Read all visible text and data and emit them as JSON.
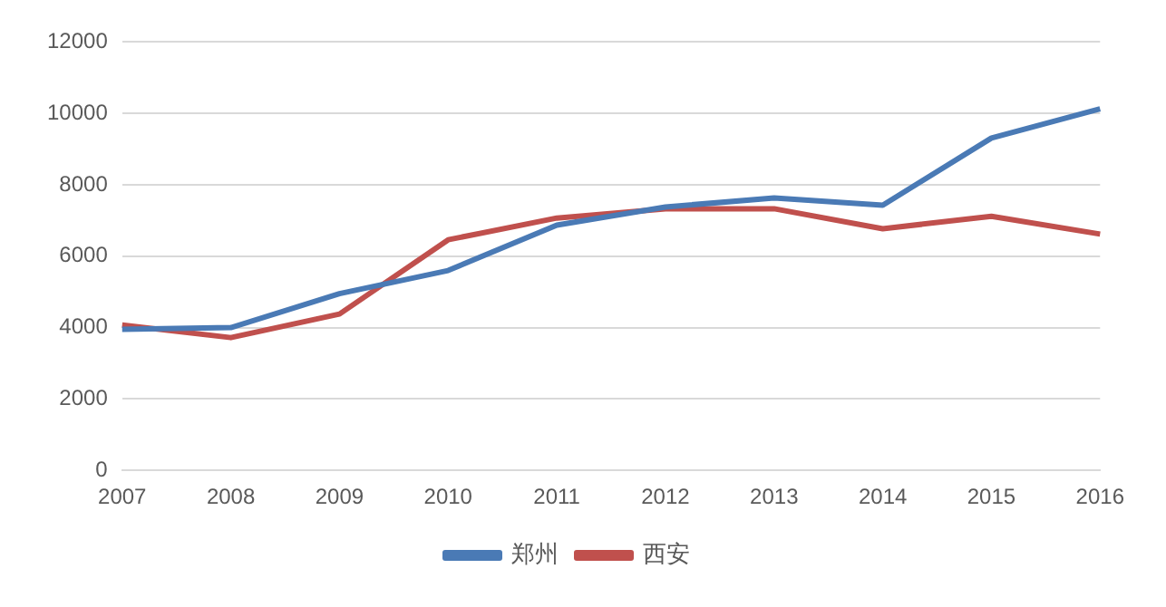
{
  "chart_data": {
    "type": "line",
    "categories": [
      "2007",
      "2008",
      "2009",
      "2010",
      "2011",
      "2012",
      "2013",
      "2014",
      "2015",
      "2016"
    ],
    "series": [
      {
        "name": "郑州",
        "color": "#4a7ab5",
        "values": [
          3950,
          4000,
          4950,
          5600,
          6870,
          7380,
          7630,
          7430,
          9310,
          10130
        ]
      },
      {
        "name": "西安",
        "color": "#c0504d",
        "values": [
          4070,
          3720,
          4380,
          6460,
          7070,
          7330,
          7330,
          6770,
          7120,
          6620
        ]
      }
    ],
    "ylim": [
      0,
      12000
    ],
    "yticks": [
      0,
      2000,
      4000,
      6000,
      8000,
      10000,
      12000
    ],
    "grid": "y",
    "legend": "bottom",
    "marker": "none",
    "line_style": "solid"
  }
}
